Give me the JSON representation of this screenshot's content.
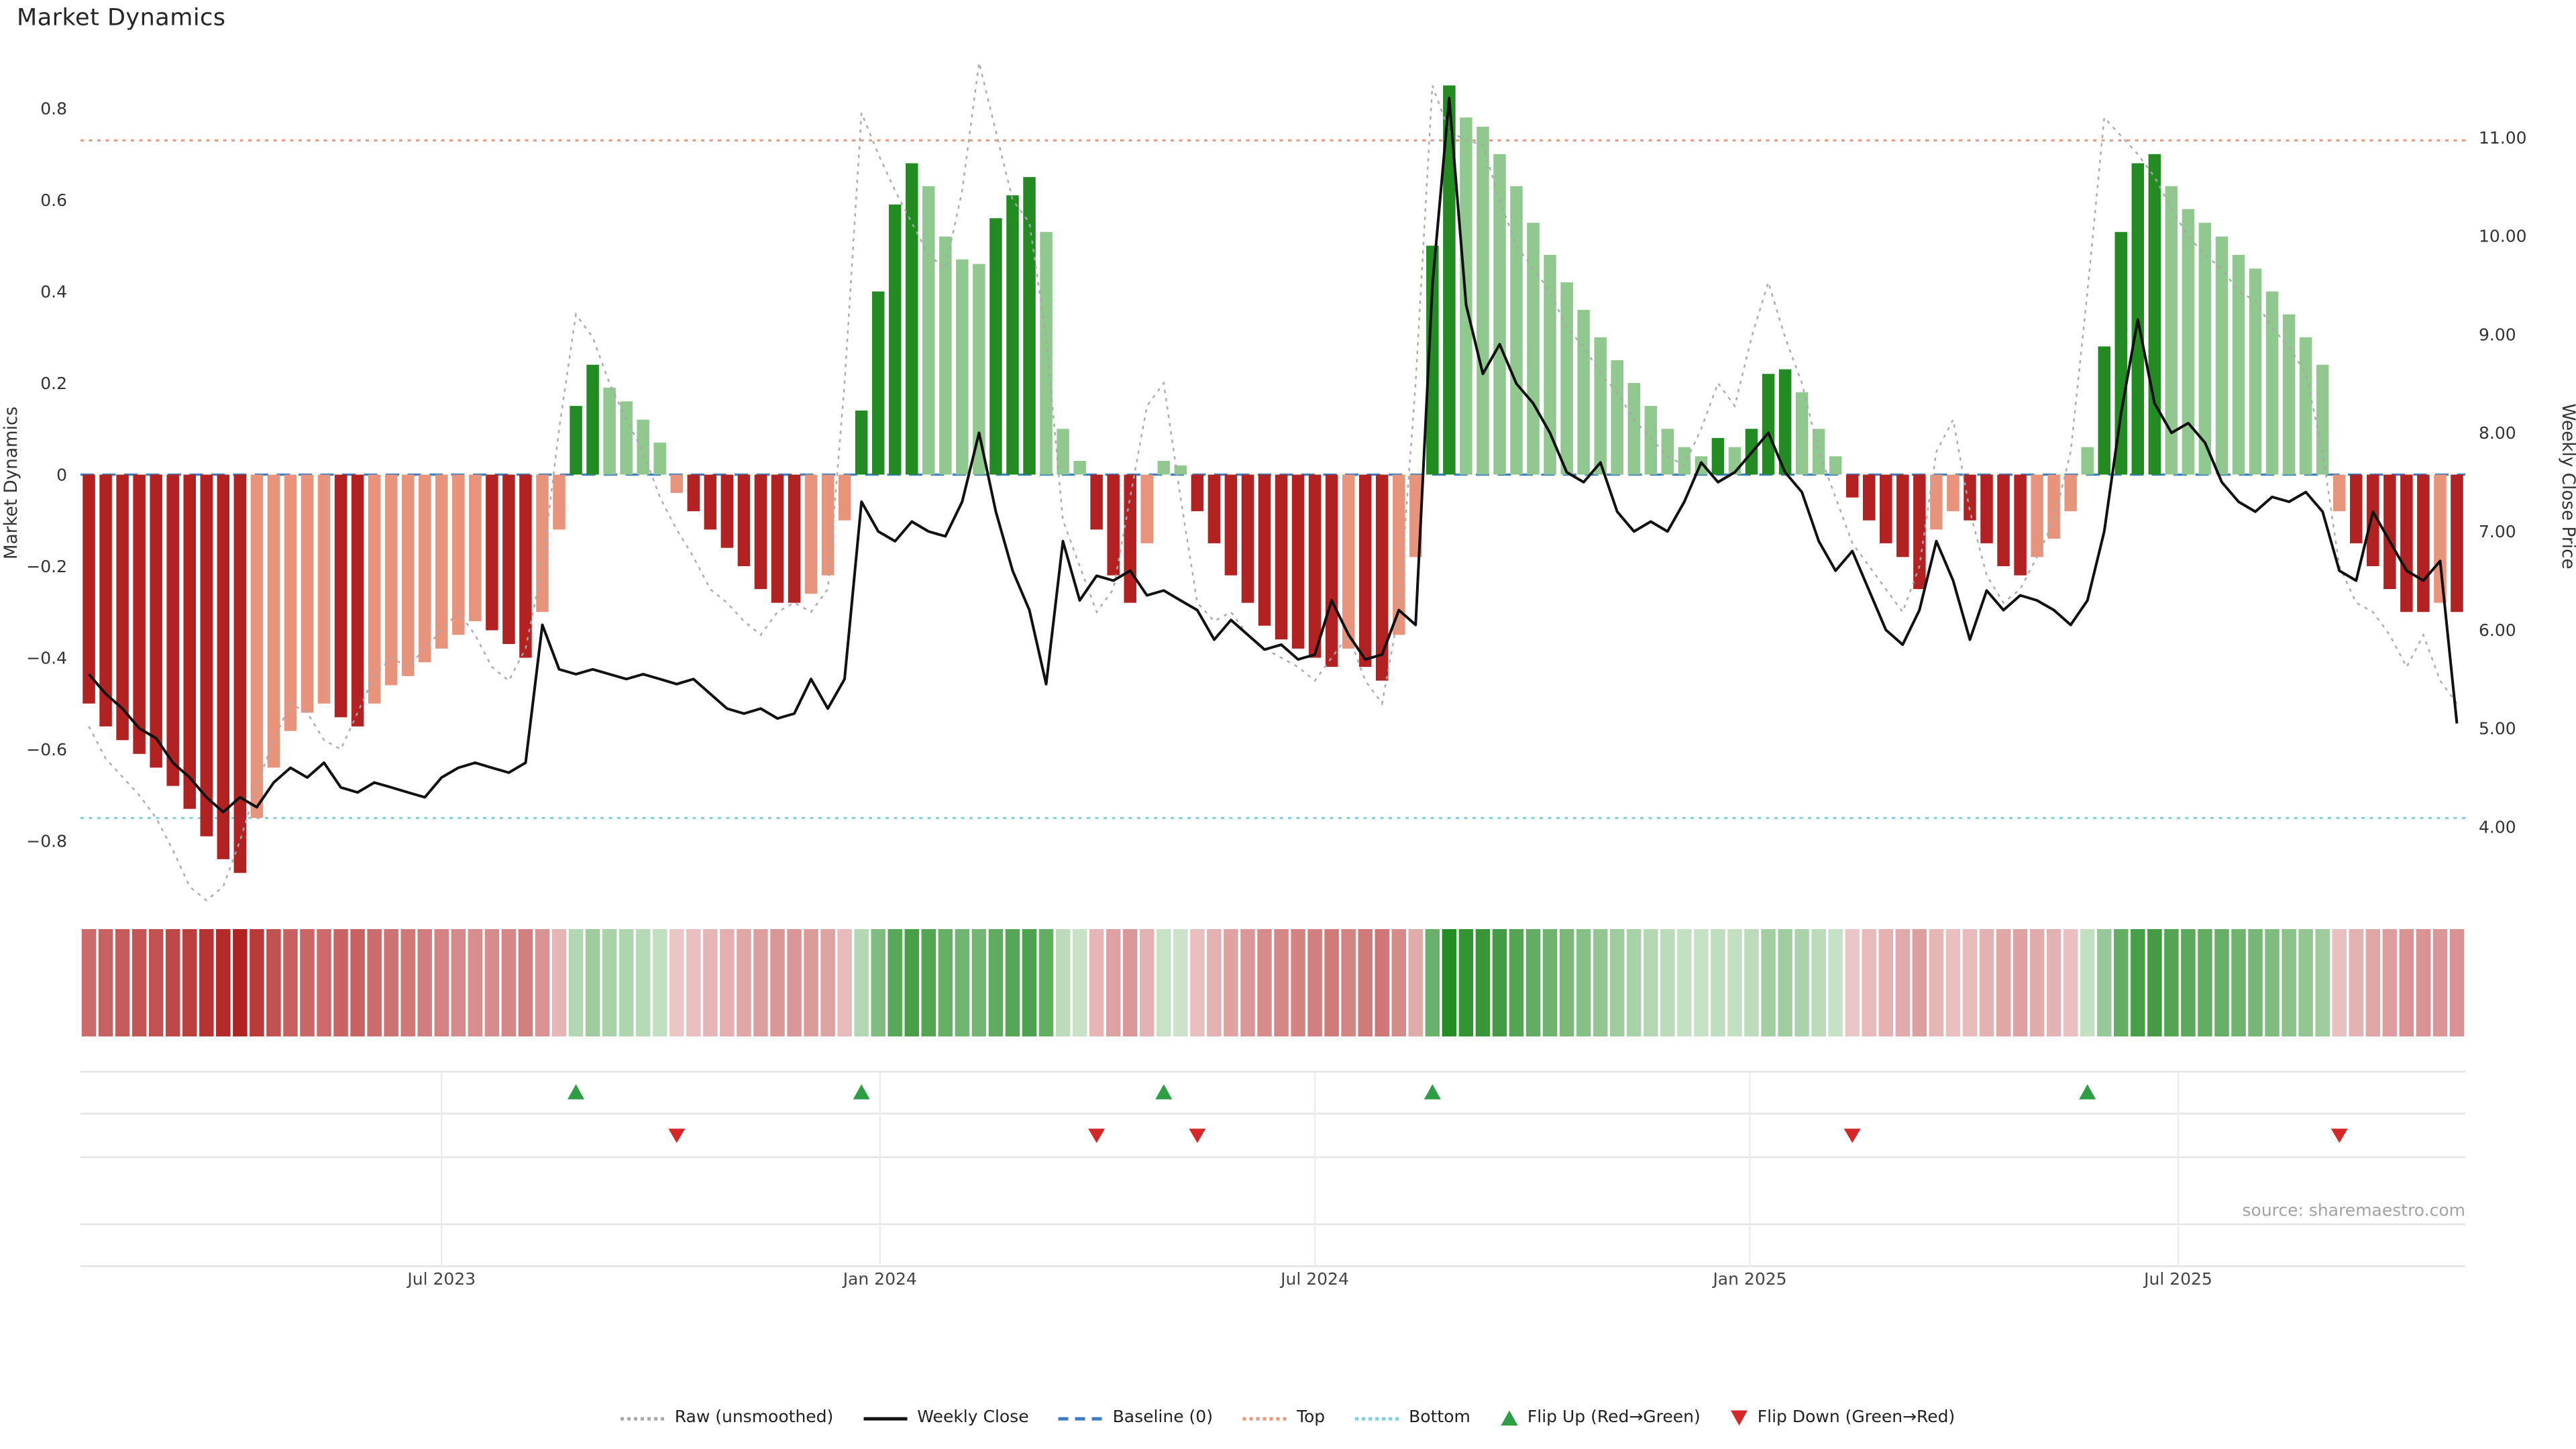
{
  "title": "Market Dynamics",
  "source": "source: sharemaestro.com",
  "colors": {
    "bar_pos_strong": "#228b22",
    "bar_pos_weak": "#90c890",
    "bar_neg_strong": "#b22222",
    "bar_neg_weak": "#e8937c",
    "raw_line": "#a9a9a9",
    "close_line": "#111111",
    "baseline": "#3c7ebf",
    "top_line": "#e9967a",
    "bottom_line": "#82cfe0",
    "flip_up": "#2e9e44",
    "flip_down": "#d62728",
    "grid_h": "#e4e4e4",
    "grid_v": "#ececec",
    "tick_text": "#333333",
    "date_text": "#444444"
  },
  "chart_data": {
    "type": "bar",
    "title": "Market Dynamics",
    "xlabel": "",
    "ylabel": "Market Dynamics",
    "ylabel_right": "Weekly Close Price",
    "ylim_left": [
      -0.95,
      0.92
    ],
    "ylim_right": [
      3.6,
      11.6
    ],
    "baseline": 0,
    "top_threshold": 0.73,
    "bottom_threshold": -0.75,
    "yticks_left": [
      {
        "v": 0.8,
        "label": "0.8"
      },
      {
        "v": 0.6,
        "label": "0.6"
      },
      {
        "v": 0.4,
        "label": "0.4"
      },
      {
        "v": 0.2,
        "label": "0.2"
      },
      {
        "v": 0,
        "label": "0"
      },
      {
        "v": -0.2,
        "label": "−0.2"
      },
      {
        "v": -0.4,
        "label": "−0.4"
      },
      {
        "v": -0.6,
        "label": "−0.6"
      },
      {
        "v": -0.8,
        "label": "−0.8"
      }
    ],
    "yticks_right": [
      {
        "v": 4,
        "label": "4.00"
      },
      {
        "v": 5,
        "label": "5.00"
      },
      {
        "v": 6,
        "label": "6.00"
      },
      {
        "v": 7,
        "label": "7.00"
      },
      {
        "v": 8,
        "label": "8.00"
      },
      {
        "v": 9,
        "label": "9.00"
      },
      {
        "v": 10,
        "label": "10.00"
      },
      {
        "v": 11,
        "label": "11.00"
      }
    ],
    "xticks": [
      {
        "pos": 21.5,
        "label": "Jul 2023"
      },
      {
        "pos": 47.6,
        "label": "Jan 2024"
      },
      {
        "pos": 73.5,
        "label": "Jul 2024"
      },
      {
        "pos": 99.4,
        "label": "Jan 2025"
      },
      {
        "pos": 124.9,
        "label": "Jul 2025"
      }
    ],
    "series": [
      {
        "name": "Market Dynamics",
        "type": "bar",
        "axis": "left",
        "values": [
          -0.5,
          -0.55,
          -0.58,
          -0.61,
          -0.64,
          -0.68,
          -0.73,
          -0.79,
          -0.84,
          -0.87,
          -0.75,
          -0.64,
          -0.56,
          -0.52,
          -0.5,
          -0.53,
          -0.55,
          -0.5,
          -0.46,
          -0.44,
          -0.41,
          -0.38,
          -0.35,
          -0.32,
          -0.34,
          -0.37,
          -0.4,
          -0.3,
          -0.12,
          0.15,
          0.24,
          0.19,
          0.16,
          0.12,
          0.07,
          -0.04,
          -0.08,
          -0.12,
          -0.16,
          -0.2,
          -0.25,
          -0.28,
          -0.28,
          -0.26,
          -0.22,
          -0.1,
          0.14,
          0.4,
          0.59,
          0.68,
          0.63,
          0.52,
          0.47,
          0.46,
          0.56,
          0.61,
          0.65,
          0.53,
          0.1,
          0.03,
          -0.12,
          -0.22,
          -0.28,
          -0.15,
          0.03,
          0.02,
          -0.08,
          -0.15,
          -0.22,
          -0.28,
          -0.33,
          -0.36,
          -0.38,
          -0.4,
          -0.42,
          -0.38,
          -0.42,
          -0.45,
          -0.35,
          -0.18,
          0.5,
          0.85,
          0.78,
          0.76,
          0.7,
          0.63,
          0.55,
          0.48,
          0.42,
          0.36,
          0.3,
          0.25,
          0.2,
          0.15,
          0.1,
          0.06,
          0.04,
          0.08,
          0.06,
          0.1,
          0.22,
          0.23,
          0.18,
          0.1,
          0.04,
          -0.05,
          -0.1,
          -0.15,
          -0.18,
          -0.25,
          -0.12,
          -0.08,
          -0.1,
          -0.15,
          -0.2,
          -0.22,
          -0.18,
          -0.14,
          -0.08,
          0.06,
          0.28,
          0.53,
          0.68,
          0.7,
          0.63,
          0.58,
          0.55,
          0.52,
          0.48,
          0.45,
          0.4,
          0.35,
          0.3,
          0.24,
          -0.08,
          -0.15,
          -0.2,
          -0.25,
          -0.3,
          -0.3,
          -0.28,
          -0.3
        ]
      },
      {
        "name": "Raw (unsmoothed)",
        "type": "line",
        "axis": "left",
        "values": [
          -0.55,
          -0.62,
          -0.66,
          -0.7,
          -0.75,
          -0.82,
          -0.9,
          -0.93,
          -0.9,
          -0.8,
          -0.68,
          -0.58,
          -0.5,
          -0.52,
          -0.58,
          -0.6,
          -0.52,
          -0.44,
          -0.4,
          -0.42,
          -0.38,
          -0.34,
          -0.3,
          -0.35,
          -0.42,
          -0.45,
          -0.38,
          -0.2,
          0.1,
          0.35,
          0.3,
          0.2,
          0.12,
          0.05,
          -0.05,
          -0.12,
          -0.18,
          -0.25,
          -0.28,
          -0.32,
          -0.35,
          -0.3,
          -0.28,
          -0.3,
          -0.25,
          0.2,
          0.79,
          0.7,
          0.62,
          0.55,
          0.48,
          0.45,
          0.62,
          0.9,
          0.75,
          0.6,
          0.55,
          0.3,
          -0.1,
          -0.2,
          -0.3,
          -0.25,
          -0.05,
          0.15,
          0.2,
          -0.05,
          -0.28,
          -0.32,
          -0.3,
          -0.35,
          -0.38,
          -0.4,
          -0.42,
          -0.45,
          -0.4,
          -0.35,
          -0.45,
          -0.5,
          -0.3,
          0.2,
          0.85,
          0.75,
          0.73,
          0.72,
          0.6,
          0.5,
          0.45,
          0.4,
          0.32,
          0.28,
          0.22,
          0.18,
          0.12,
          0.08,
          0.04,
          0.02,
          0.1,
          0.2,
          0.15,
          0.3,
          0.42,
          0.3,
          0.2,
          0.05,
          -0.05,
          -0.15,
          -0.2,
          -0.25,
          -0.3,
          -0.2,
          0.05,
          0.12,
          -0.08,
          -0.22,
          -0.28,
          -0.25,
          -0.18,
          -0.1,
          0.05,
          0.4,
          0.78,
          0.74,
          0.7,
          0.65,
          0.58,
          0.52,
          0.48,
          0.45,
          0.4,
          0.38,
          0.32,
          0.28,
          0.22,
          0.05,
          -0.2,
          -0.28,
          -0.3,
          -0.35,
          -0.42,
          -0.35,
          -0.45,
          -0.5
        ]
      },
      {
        "name": "Weekly Close",
        "type": "line",
        "axis": "right",
        "values": [
          5.55,
          5.35,
          5.2,
          5.0,
          4.9,
          4.65,
          4.5,
          4.3,
          4.15,
          4.3,
          4.2,
          4.45,
          4.6,
          4.5,
          4.65,
          4.4,
          4.35,
          4.45,
          4.4,
          4.35,
          4.3,
          4.5,
          4.6,
          4.65,
          4.6,
          4.55,
          4.65,
          6.05,
          5.6,
          5.55,
          5.6,
          5.55,
          5.5,
          5.55,
          5.5,
          5.45,
          5.5,
          5.35,
          5.2,
          5.15,
          5.2,
          5.1,
          5.15,
          5.5,
          5.2,
          5.5,
          7.3,
          7.0,
          6.9,
          7.1,
          7.0,
          6.95,
          7.3,
          8.0,
          7.2,
          6.6,
          6.2,
          5.45,
          6.9,
          6.3,
          6.55,
          6.5,
          6.6,
          6.35,
          6.4,
          6.3,
          6.2,
          5.9,
          6.1,
          5.95,
          5.8,
          5.85,
          5.7,
          5.75,
          6.3,
          5.95,
          5.7,
          5.75,
          6.2,
          6.05,
          9.5,
          11.4,
          9.3,
          8.6,
          8.9,
          8.5,
          8.3,
          8.0,
          7.6,
          7.5,
          7.7,
          7.2,
          7.0,
          7.1,
          7.0,
          7.3,
          7.7,
          7.5,
          7.6,
          7.8,
          8.0,
          7.6,
          7.4,
          6.9,
          6.6,
          6.8,
          6.4,
          6.0,
          5.85,
          6.2,
          6.9,
          6.5,
          5.9,
          6.4,
          6.2,
          6.35,
          6.3,
          6.2,
          6.05,
          6.3,
          7.0,
          8.2,
          9.15,
          8.3,
          8.0,
          8.1,
          7.9,
          7.5,
          7.3,
          7.2,
          7.35,
          7.3,
          7.4,
          7.2,
          6.6,
          6.5,
          7.2,
          6.9,
          6.6,
          6.5,
          6.7,
          5.05
        ]
      }
    ],
    "flip_up_indices": [
      29,
      46,
      64,
      80,
      119
    ],
    "flip_down_indices": [
      35,
      60,
      66,
      105,
      134
    ]
  },
  "legend": {
    "items": [
      {
        "id": "raw",
        "label": "Raw (unsmoothed)",
        "swatch": "raw"
      },
      {
        "id": "close",
        "label": "Weekly Close",
        "swatch": "close"
      },
      {
        "id": "baseline",
        "label": "Baseline (0)",
        "swatch": "baseline"
      },
      {
        "id": "top",
        "label": "Top",
        "swatch": "top"
      },
      {
        "id": "bottom",
        "label": "Bottom",
        "swatch": "bottom"
      },
      {
        "id": "flip-up",
        "label": "Flip Up (Red→Green)",
        "swatch": "flip-up"
      },
      {
        "id": "flip-down",
        "label": "Flip Down (Green→Red)",
        "swatch": "flip-down"
      }
    ]
  }
}
